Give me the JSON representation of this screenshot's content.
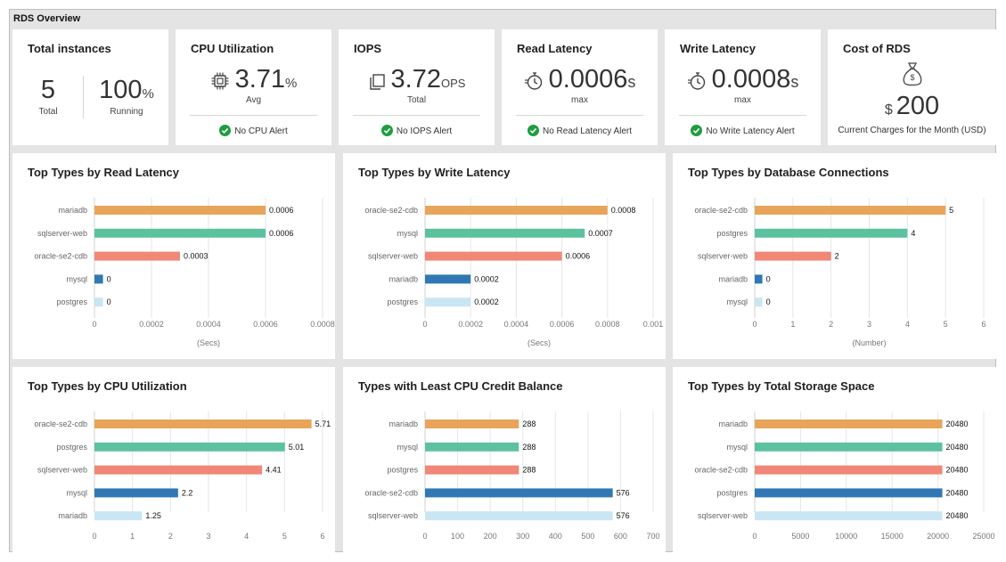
{
  "frame": {
    "title": "RDS Overview"
  },
  "kpis": {
    "instances": {
      "title": "Total instances",
      "total": "5",
      "total_label": "Total",
      "running": "100",
      "running_unit": "%",
      "running_label": "Running"
    },
    "cpu": {
      "title": "CPU Utilization",
      "value": "3.71",
      "unit": "%",
      "sub": "Avg",
      "alert": "No CPU Alert",
      "icon": "cpu-chip-icon"
    },
    "iops": {
      "title": "IOPS",
      "value": "3.72",
      "unit": "OPS",
      "sub": "Total",
      "alert": "No IOPS Alert",
      "icon": "copy-stack-icon"
    },
    "read_latency": {
      "title": "Read Latency",
      "value": "0.0006",
      "unit": "s",
      "sub": "max",
      "alert": "No Read Latency Alert",
      "icon": "stopwatch-icon"
    },
    "write_latency": {
      "title": "Write Latency",
      "value": "0.0008",
      "unit": "s",
      "sub": "max",
      "alert": "No Write Latency Alert",
      "icon": "stopwatch-icon"
    },
    "cost": {
      "title": "Cost of RDS",
      "currency": "$",
      "value": "200",
      "sub": "Current Charges for the Month (USD)",
      "icon": "money-bag-icon"
    }
  },
  "colors": [
    "#e8a45a",
    "#5cc29d",
    "#f08777",
    "#2f78b5",
    "#c9e6f2"
  ],
  "chart_data": [
    {
      "id": "read_latency",
      "type": "bar",
      "title": "Top Types by Read Latency",
      "categories": [
        "mariadb",
        "sqlserver-web",
        "oracle-se2-cdb",
        "mysql",
        "postgres"
      ],
      "values": [
        0.0006,
        0.0006,
        0.0003,
        3e-05,
        3e-05
      ],
      "value_labels": [
        "0.0006",
        "0.0006",
        "0.0003",
        "0",
        "0"
      ],
      "xticks": [
        0,
        0.0002,
        0.0004,
        0.0006,
        0.0008
      ],
      "xtick_labels": [
        "0",
        "0.0002",
        "0.0004",
        "0.0006",
        "0.0008"
      ],
      "xlim": [
        0,
        0.0008
      ],
      "xlabel": "(Secs)"
    },
    {
      "id": "write_latency",
      "type": "bar",
      "title": "Top Types by Write Latency",
      "categories": [
        "oracle-se2-cdb",
        "mysql",
        "sqlserver-web",
        "mariadb",
        "postgres"
      ],
      "values": [
        0.0008,
        0.0007,
        0.0006,
        0.0002,
        0.0002
      ],
      "value_labels": [
        "0.0008",
        "0.0007",
        "0.0006",
        "0.0002",
        "0.0002"
      ],
      "xticks": [
        0,
        0.0002,
        0.0004,
        0.0006,
        0.0008,
        0.001
      ],
      "xtick_labels": [
        "0",
        "0.0002",
        "0.0004",
        "0.0006",
        "0.0008",
        "0.001"
      ],
      "xlim": [
        0,
        0.001
      ],
      "xlabel": "(Secs)"
    },
    {
      "id": "db_connections",
      "type": "bar",
      "title": "Top Types by Database Connections",
      "categories": [
        "oracle-se2-cdb",
        "postgres",
        "sqlserver-web",
        "mariadb",
        "mysql"
      ],
      "values": [
        5,
        4,
        2,
        0.2,
        0.2
      ],
      "value_labels": [
        "5",
        "4",
        "2",
        "0",
        "0"
      ],
      "xticks": [
        0,
        1,
        2,
        3,
        4,
        5,
        6
      ],
      "xtick_labels": [
        "0",
        "1",
        "2",
        "3",
        "4",
        "5",
        "6"
      ],
      "xlim": [
        0,
        6
      ],
      "xlabel": "(Number)"
    },
    {
      "id": "cpu_util",
      "type": "bar",
      "title": "Top Types by CPU Utilization",
      "categories": [
        "oracle-se2-cdb",
        "postgres",
        "sqlserver-web",
        "mysql",
        "mariadb"
      ],
      "values": [
        5.71,
        5.01,
        4.41,
        2.2,
        1.25
      ],
      "value_labels": [
        "5.71",
        "5.01",
        "4.41",
        "2.2",
        "1.25"
      ],
      "xticks": [
        0,
        1,
        2,
        3,
        4,
        5,
        6
      ],
      "xtick_labels": [
        "0",
        "1",
        "2",
        "3",
        "4",
        "5",
        "6"
      ],
      "xlim": [
        0,
        6
      ],
      "xlabel": ""
    },
    {
      "id": "cpu_credit",
      "type": "bar",
      "title": "Types with Least CPU Credit Balance",
      "categories": [
        "mariadb",
        "mysql",
        "postgres",
        "oracle-se2-cdb",
        "sqlserver-web"
      ],
      "values": [
        288,
        288,
        288,
        576,
        576
      ],
      "value_labels": [
        "288",
        "288",
        "288",
        "576",
        "576"
      ],
      "xticks": [
        0,
        100,
        200,
        300,
        400,
        500,
        600,
        700
      ],
      "xtick_labels": [
        "0",
        "100",
        "200",
        "300",
        "400",
        "500",
        "600",
        "700"
      ],
      "xlim": [
        0,
        700
      ],
      "xlabel": ""
    },
    {
      "id": "storage",
      "type": "bar",
      "title": "Top Types by Total Storage Space",
      "categories": [
        "mariadb",
        "mysql",
        "oracle-se2-cdb",
        "postgres",
        "sqlserver-web"
      ],
      "values": [
        20480,
        20480,
        20480,
        20480,
        20480
      ],
      "value_labels": [
        "20480",
        "20480",
        "20480",
        "20480",
        "20480"
      ],
      "xticks": [
        0,
        5000,
        10000,
        15000,
        20000,
        25000
      ],
      "xtick_labels": [
        "0",
        "5000",
        "10000",
        "15000",
        "20000",
        "25000"
      ],
      "xlim": [
        0,
        25000
      ],
      "xlabel": ""
    }
  ]
}
